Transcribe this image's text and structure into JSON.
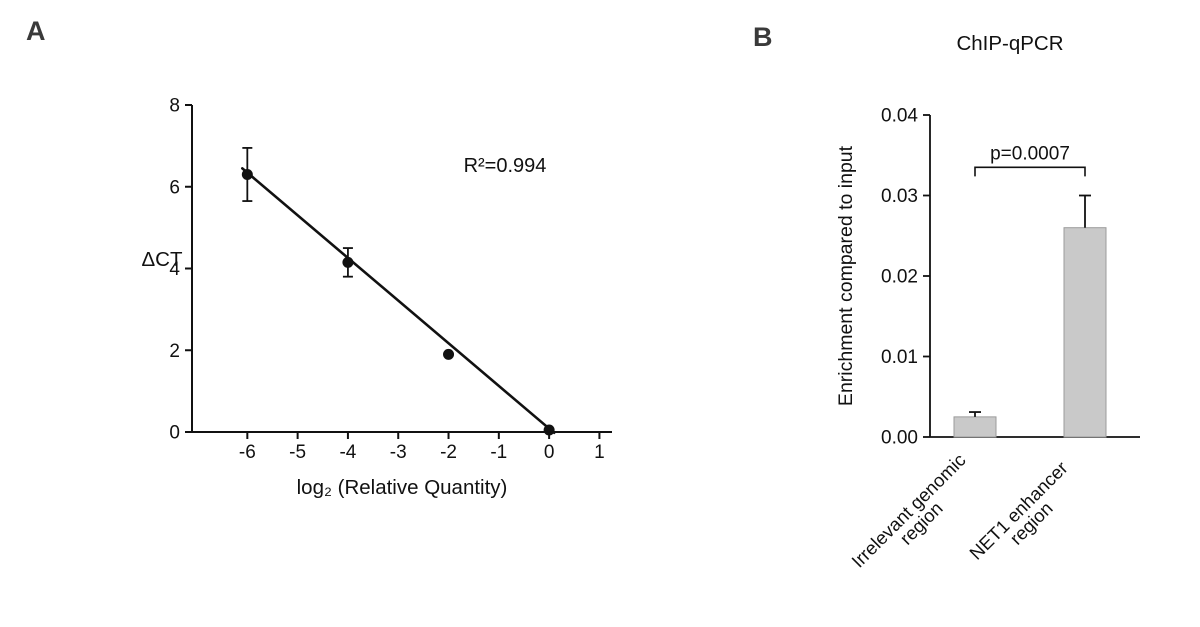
{
  "panels": {
    "a": {
      "label": "A"
    },
    "b": {
      "label": "B"
    }
  },
  "chart_data": [
    {
      "id": "standard-curve",
      "panel": "A",
      "type": "scatter",
      "title": "",
      "xlabel": "log₂ (Relative Quantity)",
      "ylabel": "ΔCT",
      "annotation": "R²=0.994",
      "xlim": [
        -7.1,
        1.25
      ],
      "ylim": [
        0,
        8
      ],
      "xticks": [
        -6,
        -5,
        -4,
        -3,
        -2,
        -1,
        0,
        1
      ],
      "yticks": [
        0,
        2,
        4,
        6,
        8
      ],
      "x": [
        -6,
        -4,
        -2,
        0
      ],
      "y": [
        6.3,
        4.15,
        1.9,
        0.05
      ],
      "yerr": [
        0.65,
        0.35,
        0,
        0
      ],
      "fit_line": {
        "x1": -6.1,
        "y1": 6.45,
        "x2": 0.1,
        "y2": -0.02
      },
      "grid": false,
      "marker_color": "#111111",
      "line_color": "#111111"
    },
    {
      "id": "chip-qpcr",
      "panel": "B",
      "type": "bar",
      "title": "ChIP-qPCR",
      "xlabel": "",
      "ylabel": "Enrichment compared to input",
      "ylim": [
        0,
        0.04
      ],
      "yticks": [
        0,
        0.01,
        0.02,
        0.03,
        0.04
      ],
      "ytick_labels": [
        "0.00",
        "0.01",
        "0.02",
        "0.03",
        "0.04"
      ],
      "categories": [
        "Irrelevant genomic region",
        "NET1 enhancer region"
      ],
      "category_lines": [
        [
          "Irrelevant genomic",
          "region"
        ],
        [
          "NET1 enhancer",
          "region"
        ]
      ],
      "values": [
        0.0025,
        0.026
      ],
      "yerr": [
        0.0006,
        0.004
      ],
      "bar_color": "#c9c9c9",
      "bar_edge": "#9b9b9b",
      "significance": {
        "text": "p=0.0007",
        "y": 0.0335
      },
      "grid": false
    }
  ]
}
